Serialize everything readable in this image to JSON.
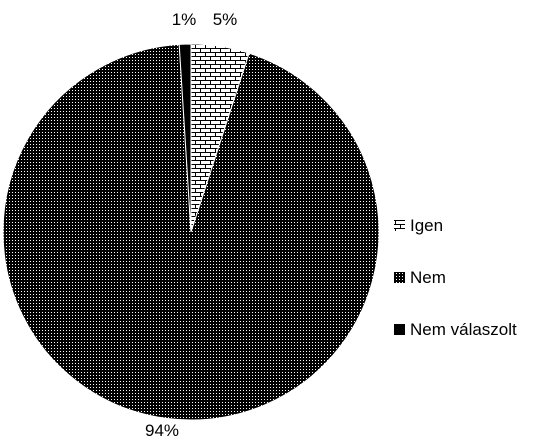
{
  "chart_data": {
    "type": "pie",
    "categories": [
      "Igen",
      "Nem",
      "Nem válaszolt"
    ],
    "values": [
      5,
      94,
      1
    ],
    "data_labels": [
      "5%",
      "94%",
      "1%"
    ],
    "legend": {
      "position": "right",
      "items": [
        {
          "label": "Igen",
          "pattern": "brick"
        },
        {
          "label": "Nem",
          "pattern": "dotted"
        },
        {
          "label": "Nem válaszolt",
          "pattern": "solid"
        }
      ]
    },
    "colors": {
      "ink": "#000000",
      "background": "#ffffff"
    }
  }
}
